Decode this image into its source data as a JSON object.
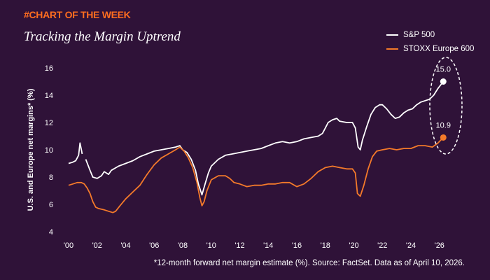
{
  "header": {
    "tag": "#CHART OF THE WEEK",
    "title": "Tracking the Margin Uptrend"
  },
  "footnote": "*12-month forward net margin estimate (%). Source: FactSet. Data as of April 10, 2026.",
  "colors": {
    "background": "#2f1238",
    "sp500": "#ffffff",
    "stoxx": "#f47a2a",
    "accent": "#ff6d1f"
  },
  "chart_data": {
    "type": "line",
    "ylabel": "U.S. and Europe net margins* (%)",
    "xlabel": "",
    "xlim": [
      2000,
      2026.6
    ],
    "ylim": [
      4,
      16
    ],
    "x_ticks": [
      {
        "value": 2000,
        "label": "'00"
      },
      {
        "value": 2002,
        "label": "'02"
      },
      {
        "value": 2004,
        "label": "'04"
      },
      {
        "value": 2006,
        "label": "'06"
      },
      {
        "value": 2008,
        "label": "'08"
      },
      {
        "value": 2010,
        "label": "'10"
      },
      {
        "value": 2012,
        "label": "'12"
      },
      {
        "value": 2014,
        "label": "'14"
      },
      {
        "value": 2016,
        "label": "'16"
      },
      {
        "value": 2018,
        "label": "'18"
      },
      {
        "value": 2020,
        "label": "'20"
      },
      {
        "value": 2022,
        "label": "'22"
      },
      {
        "value": 2024,
        "label": "'24"
      },
      {
        "value": 2026,
        "label": "'26"
      }
    ],
    "y_ticks": [
      4,
      6,
      8,
      10,
      12,
      14,
      16
    ],
    "grid": false,
    "legend_position": "top-right",
    "series": [
      {
        "name": "S&P 500",
        "color": "#ffffff",
        "segments": [
          [
            [
              2000.0,
              9.0
            ],
            [
              2000.3,
              9.1
            ],
            [
              2000.5,
              9.2
            ],
            [
              2000.7,
              9.6
            ],
            [
              2000.8,
              10.5
            ],
            [
              2000.9,
              10.0
            ],
            [
              2000.95,
              9.7
            ]
          ],
          [
            [
              2001.2,
              9.3
            ],
            [
              2001.5,
              8.5
            ],
            [
              2001.7,
              8.0
            ],
            [
              2002.0,
              7.9
            ],
            [
              2002.3,
              8.1
            ],
            [
              2002.5,
              8.4
            ],
            [
              2002.8,
              8.2
            ],
            [
              2003.0,
              8.5
            ],
            [
              2003.5,
              8.8
            ],
            [
              2004.0,
              9.0
            ],
            [
              2004.5,
              9.2
            ],
            [
              2005.0,
              9.5
            ],
            [
              2005.5,
              9.7
            ],
            [
              2006.0,
              9.9
            ],
            [
              2006.5,
              10.0
            ],
            [
              2007.0,
              10.1
            ],
            [
              2007.5,
              10.2
            ],
            [
              2007.8,
              10.3
            ],
            [
              2008.0,
              10.0
            ],
            [
              2008.3,
              9.8
            ],
            [
              2008.6,
              9.3
            ],
            [
              2008.9,
              8.5
            ],
            [
              2009.1,
              7.5
            ],
            [
              2009.35,
              6.7
            ],
            [
              2009.6,
              7.6
            ],
            [
              2009.8,
              8.3
            ],
            [
              2010.0,
              8.8
            ],
            [
              2010.5,
              9.3
            ],
            [
              2011.0,
              9.6
            ],
            [
              2011.5,
              9.7
            ],
            [
              2012.0,
              9.8
            ],
            [
              2012.5,
              9.9
            ],
            [
              2013.0,
              10.0
            ],
            [
              2013.5,
              10.1
            ],
            [
              2014.0,
              10.3
            ],
            [
              2014.5,
              10.5
            ],
            [
              2015.0,
              10.6
            ],
            [
              2015.5,
              10.5
            ],
            [
              2016.0,
              10.6
            ],
            [
              2016.5,
              10.8
            ],
            [
              2017.0,
              10.9
            ],
            [
              2017.5,
              11.0
            ],
            [
              2017.8,
              11.2
            ],
            [
              2018.0,
              11.6
            ],
            [
              2018.2,
              12.0
            ],
            [
              2018.5,
              12.2
            ],
            [
              2018.8,
              12.3
            ],
            [
              2019.0,
              12.1
            ],
            [
              2019.5,
              12.0
            ],
            [
              2019.9,
              12.0
            ],
            [
              2020.1,
              11.6
            ],
            [
              2020.3,
              10.2
            ],
            [
              2020.45,
              10.0
            ],
            [
              2020.6,
              10.7
            ],
            [
              2020.9,
              11.7
            ],
            [
              2021.2,
              12.6
            ],
            [
              2021.5,
              13.1
            ],
            [
              2021.8,
              13.3
            ],
            [
              2022.0,
              13.3
            ],
            [
              2022.3,
              13.0
            ],
            [
              2022.6,
              12.6
            ],
            [
              2022.9,
              12.3
            ],
            [
              2023.2,
              12.4
            ],
            [
              2023.5,
              12.7
            ],
            [
              2023.8,
              12.9
            ],
            [
              2024.1,
              13.0
            ],
            [
              2024.4,
              13.3
            ],
            [
              2024.7,
              13.5
            ],
            [
              2025.0,
              13.6
            ],
            [
              2025.3,
              13.7
            ],
            [
              2025.6,
              14.0
            ],
            [
              2025.9,
              14.5
            ],
            [
              2026.27,
              15.0
            ]
          ]
        ]
      },
      {
        "name": "STOXX Europe 600",
        "color": "#f47a2a",
        "segments": [
          [
            [
              2000.0,
              7.4
            ],
            [
              2000.3,
              7.5
            ],
            [
              2000.6,
              7.6
            ],
            [
              2000.9,
              7.6
            ],
            [
              2001.1,
              7.5
            ],
            [
              2001.3,
              7.2
            ],
            [
              2001.5,
              6.8
            ],
            [
              2001.7,
              6.2
            ],
            [
              2001.9,
              5.8
            ],
            [
              2002.1,
              5.7
            ],
            [
              2002.5,
              5.6
            ],
            [
              2002.8,
              5.5
            ],
            [
              2003.1,
              5.4
            ],
            [
              2003.3,
              5.5
            ],
            [
              2003.6,
              5.9
            ],
            [
              2004.0,
              6.4
            ],
            [
              2004.5,
              6.9
            ],
            [
              2005.0,
              7.4
            ],
            [
              2005.5,
              8.2
            ],
            [
              2006.0,
              8.9
            ],
            [
              2006.5,
              9.4
            ],
            [
              2007.0,
              9.7
            ],
            [
              2007.5,
              10.0
            ],
            [
              2007.8,
              10.2
            ],
            [
              2008.1,
              9.9
            ],
            [
              2008.4,
              9.4
            ],
            [
              2008.7,
              8.7
            ],
            [
              2009.0,
              7.6
            ],
            [
              2009.2,
              6.5
            ],
            [
              2009.35,
              5.9
            ],
            [
              2009.5,
              6.2
            ],
            [
              2009.7,
              7.0
            ],
            [
              2010.0,
              7.8
            ],
            [
              2010.5,
              8.1
            ],
            [
              2011.0,
              8.1
            ],
            [
              2011.3,
              7.9
            ],
            [
              2011.6,
              7.6
            ],
            [
              2012.0,
              7.5
            ],
            [
              2012.5,
              7.3
            ],
            [
              2013.0,
              7.4
            ],
            [
              2013.5,
              7.4
            ],
            [
              2014.0,
              7.5
            ],
            [
              2014.5,
              7.5
            ],
            [
              2015.0,
              7.6
            ],
            [
              2015.5,
              7.6
            ],
            [
              2016.0,
              7.3
            ],
            [
              2016.5,
              7.5
            ],
            [
              2017.0,
              7.9
            ],
            [
              2017.5,
              8.4
            ],
            [
              2018.0,
              8.7
            ],
            [
              2018.5,
              8.8
            ],
            [
              2019.0,
              8.7
            ],
            [
              2019.5,
              8.6
            ],
            [
              2019.9,
              8.6
            ],
            [
              2020.1,
              8.3
            ],
            [
              2020.25,
              6.8
            ],
            [
              2020.45,
              6.6
            ],
            [
              2020.7,
              7.4
            ],
            [
              2021.0,
              8.6
            ],
            [
              2021.3,
              9.5
            ],
            [
              2021.6,
              9.9
            ],
            [
              2022.0,
              10.0
            ],
            [
              2022.5,
              10.1
            ],
            [
              2023.0,
              10.0
            ],
            [
              2023.5,
              10.1
            ],
            [
              2024.0,
              10.1
            ],
            [
              2024.5,
              10.3
            ],
            [
              2025.0,
              10.3
            ],
            [
              2025.5,
              10.2
            ],
            [
              2025.9,
              10.5
            ],
            [
              2026.27,
              10.9
            ]
          ]
        ]
      }
    ],
    "annotations": [
      {
        "series": "S&P 500",
        "x": 2026.27,
        "y": 15.0,
        "label": "15.0"
      },
      {
        "series": "STOXX Europe 600",
        "x": 2026.27,
        "y": 10.9,
        "label": "10.9"
      }
    ]
  }
}
